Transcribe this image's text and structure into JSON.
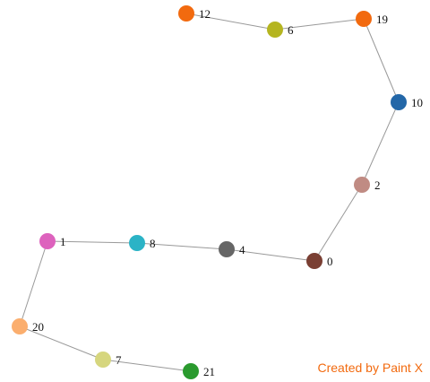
{
  "graph": {
    "edge_color": "#999999",
    "nodes": [
      {
        "id": "12",
        "label": "12",
        "color": "#f26a0f"
      },
      {
        "id": "6",
        "label": "6",
        "color": "#b5b520"
      },
      {
        "id": "19",
        "label": "19",
        "color": "#f26a0f"
      },
      {
        "id": "10",
        "label": "10",
        "color": "#2367a8"
      },
      {
        "id": "2",
        "label": "2",
        "color": "#c08b83"
      },
      {
        "id": "0",
        "label": "0",
        "color": "#7a3f33"
      },
      {
        "id": "4",
        "label": "4",
        "color": "#666666"
      },
      {
        "id": "8",
        "label": "8",
        "color": "#2bb3c6"
      },
      {
        "id": "1",
        "label": "1",
        "color": "#dd62bd"
      },
      {
        "id": "20",
        "label": "20",
        "color": "#fbae6e"
      },
      {
        "id": "7",
        "label": "7",
        "color": "#d6d67e"
      },
      {
        "id": "21",
        "label": "21",
        "color": "#2a9a2e"
      }
    ],
    "edges": [
      [
        "12",
        "6"
      ],
      [
        "6",
        "19"
      ],
      [
        "19",
        "10"
      ],
      [
        "10",
        "2"
      ],
      [
        "2",
        "0"
      ],
      [
        "0",
        "4"
      ],
      [
        "4",
        "8"
      ],
      [
        "8",
        "1"
      ],
      [
        "1",
        "20"
      ],
      [
        "20",
        "7"
      ],
      [
        "7",
        "21"
      ]
    ]
  },
  "watermark": {
    "text": "Created by Paint X",
    "color": "#f26a0f"
  }
}
